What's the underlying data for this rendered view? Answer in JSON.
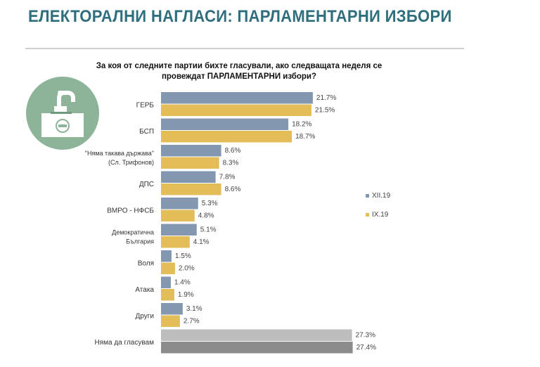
{
  "header": {
    "title": "ЕЛЕКТОРАЛНИ НАГЛАСИ: ПАРЛАМЕНТАРНИ ИЗБОРИ"
  },
  "logo": {
    "icon": "ballot-box-icon",
    "color": "#8db399"
  },
  "chart_data": {
    "type": "bar",
    "orientation": "horizontal",
    "title": "За коя от следните партии бихте гласували, ако следващата неделя се провеждат ПАРЛАМЕНТАРНИ избори?",
    "categories": [
      [
        "ГЕРБ"
      ],
      [
        "БСП"
      ],
      [
        "\"Няма такава държава\"",
        "(Сл. Трифонов)"
      ],
      [
        "ДПС"
      ],
      [
        "ВМРО - НФСБ"
      ],
      [
        "Демократична",
        "България"
      ],
      [
        "Воля"
      ],
      [
        "Атака"
      ],
      [
        "Други"
      ],
      [
        "Няма да гласувам"
      ]
    ],
    "series": [
      {
        "name": "XII.19",
        "color": "#8497b0",
        "values": [
          21.7,
          18.2,
          8.6,
          7.8,
          5.3,
          5.1,
          1.5,
          1.4,
          3.1,
          27.3
        ]
      },
      {
        "name": "IX.19",
        "color": "#e2bd58",
        "values": [
          21.5,
          18.7,
          8.3,
          8.6,
          4.8,
          4.1,
          2.0,
          1.9,
          2.7,
          27.4
        ]
      }
    ],
    "highlight_last_category_colors": [
      "#bdbdbd",
      "#8c8c8c"
    ],
    "value_format": "percent",
    "legend_position": "right",
    "grid": false,
    "xlim": [
      0,
      30
    ]
  }
}
